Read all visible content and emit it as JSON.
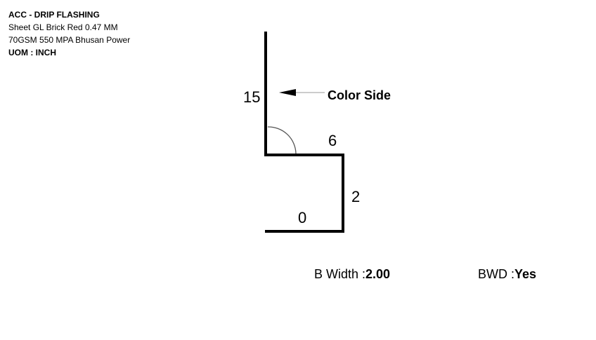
{
  "header": {
    "title": "ACC - DRIP FLASHING",
    "material": "Sheet GL Brick Red 0.47 MM",
    "spec": "70GSM 550 MPA Bhusan Power",
    "uom": "UOM : INCH"
  },
  "drawing": {
    "segments": [
      {
        "label": "15"
      },
      {
        "label": "6"
      },
      {
        "label": "2"
      },
      {
        "label": "0"
      }
    ],
    "color_side_label": "Color Side"
  },
  "footer": {
    "b_width_label": "B Width :",
    "b_width_value": "2.00",
    "bwd_label": "BWD :",
    "bwd_value": "Yes"
  }
}
